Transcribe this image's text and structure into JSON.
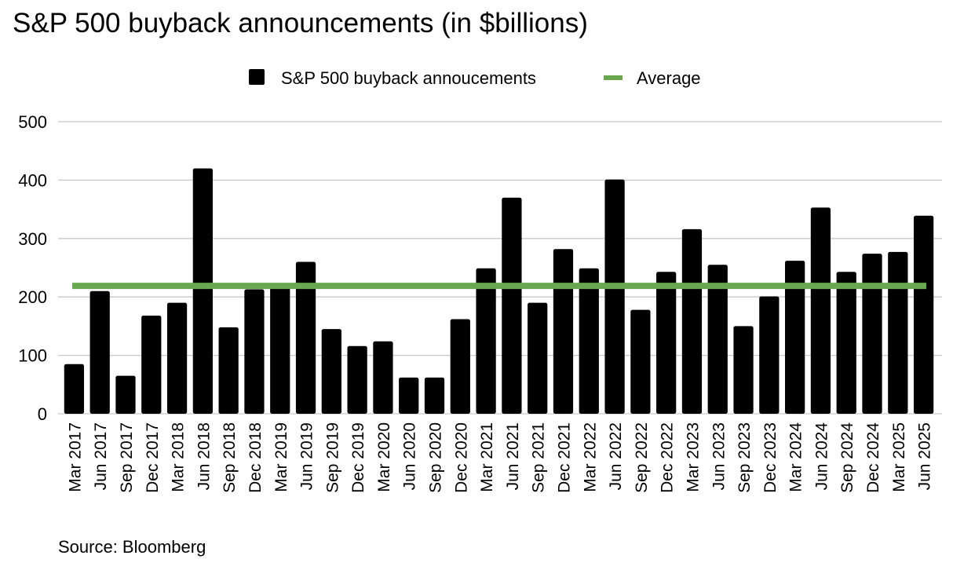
{
  "title": "S&P 500 buyback announcements (in $billions)",
  "source": "Source: Bloomberg",
  "colors": {
    "bar": "#000000",
    "average": "#6aa84f",
    "grid": "#c8c8c8"
  },
  "chart_data": {
    "type": "bar",
    "legend_position": "top-center",
    "grid": true,
    "ylim": [
      0,
      500
    ],
    "yticks": [
      0,
      100,
      200,
      300,
      400,
      500
    ],
    "categories": [
      "Mar 2017",
      "Jun 2017",
      "Sep 2017",
      "Dec 2017",
      "Mar 2018",
      "Jun 2018",
      "Sep 2018",
      "Dec 2018",
      "Mar 2019",
      "Jun 2019",
      "Sep 2019",
      "Dec 2019",
      "Mar 2020",
      "Jun 2020",
      "Sep 2020",
      "Dec 2020",
      "Mar 2021",
      "Jun 2021",
      "Sep 2021",
      "Dec 2021",
      "Mar 2022",
      "Jun 2022",
      "Sep 2022",
      "Dec 2022",
      "Mar 2023",
      "Jun 2023",
      "Sep 2023",
      "Dec 2023",
      "Mar 2024",
      "Jun 2024",
      "Sep 2024",
      "Dec 2024",
      "Mar 2025",
      "Jun 2025"
    ],
    "series": [
      {
        "name": "S&P 500 buyback annoucements",
        "type": "bar",
        "values": [
          85,
          210,
          65,
          168,
          190,
          420,
          148,
          213,
          219,
          260,
          145,
          116,
          124,
          62,
          62,
          162,
          249,
          370,
          190,
          282,
          249,
          401,
          178,
          243,
          316,
          255,
          150,
          201,
          262,
          353,
          243,
          274,
          277,
          339
        ]
      },
      {
        "name": "Average",
        "type": "line",
        "value": 219
      }
    ]
  }
}
